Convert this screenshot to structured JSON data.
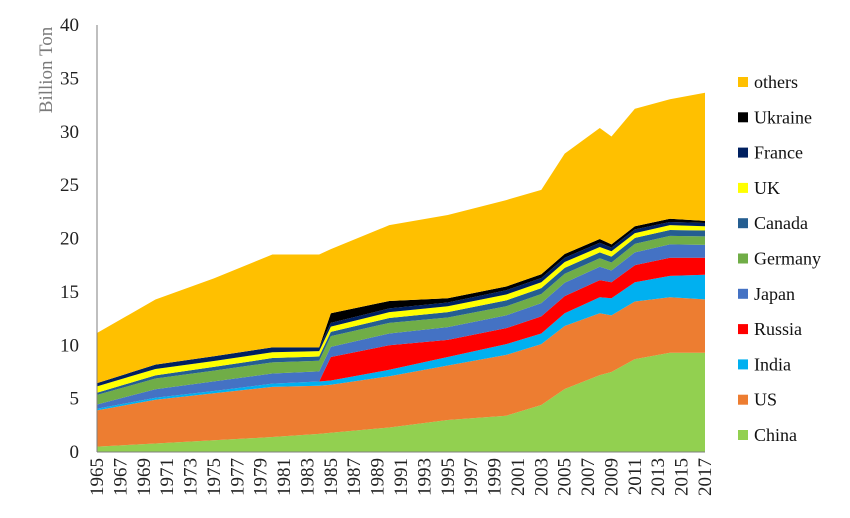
{
  "chart_data": {
    "type": "area",
    "stacked": true,
    "title": "",
    "xlabel": "",
    "ylabel": "Billion Ton",
    "ylim": [
      0,
      40
    ],
    "yticks": [
      0,
      5,
      10,
      15,
      20,
      25,
      30,
      35,
      40
    ],
    "yticks_labels": [
      "0",
      "5",
      "10",
      "15",
      "20",
      "25",
      "30",
      "35",
      "40"
    ],
    "xlim": [
      1965,
      2017
    ],
    "xtick_labels": [
      "1965",
      "1967",
      "1969",
      "1971",
      "1973",
      "1975",
      "1977",
      "1979",
      "1981",
      "1983",
      "1985",
      "1987",
      "1989",
      "1991",
      "1993",
      "1995",
      "1997",
      "1999",
      "2001",
      "2003",
      "2005",
      "2007",
      "2009",
      "2011",
      "2013",
      "2015",
      "2017"
    ],
    "legend_position": "right",
    "grid": false,
    "x_knots": [
      1965,
      1970,
      1975,
      1980,
      1984,
      1985,
      1990,
      1995,
      2000,
      2003,
      2005,
      2008,
      2009,
      2011,
      2014,
      2017
    ],
    "series": [
      {
        "name": "China",
        "color": "#92d050",
        "values": [
          0.5,
          0.8,
          1.1,
          1.4,
          1.7,
          1.8,
          2.3,
          3.0,
          3.4,
          4.4,
          5.9,
          7.2,
          7.5,
          8.7,
          9.3,
          9.3
        ]
      },
      {
        "name": "US",
        "color": "#ed7d31",
        "values": [
          3.4,
          4.1,
          4.4,
          4.7,
          4.5,
          4.5,
          4.8,
          5.1,
          5.7,
          5.7,
          5.9,
          5.8,
          5.3,
          5.4,
          5.2,
          5.0
        ]
      },
      {
        "name": "India",
        "color": "#00b0f0",
        "values": [
          0.15,
          0.18,
          0.22,
          0.3,
          0.4,
          0.4,
          0.6,
          0.8,
          1.0,
          1.0,
          1.2,
          1.5,
          1.6,
          1.8,
          2.0,
          2.3
        ]
      },
      {
        "name": "Russia",
        "color": "#ff0000",
        "values": [
          0,
          0,
          0,
          0,
          0,
          2.2,
          2.3,
          1.6,
          1.5,
          1.6,
          1.6,
          1.6,
          1.5,
          1.6,
          1.7,
          1.6
        ]
      },
      {
        "name": "Japan",
        "color": "#4472c4",
        "values": [
          0.4,
          0.8,
          0.9,
          0.95,
          0.95,
          0.95,
          1.1,
          1.2,
          1.2,
          1.25,
          1.25,
          1.25,
          1.1,
          1.2,
          1.25,
          1.2
        ]
      },
      {
        "name": "Germany",
        "color": "#70ad47",
        "values": [
          0.9,
          1.0,
          1.0,
          1.05,
          1.0,
          1.0,
          1.0,
          0.9,
          0.85,
          0.85,
          0.85,
          0.8,
          0.75,
          0.8,
          0.8,
          0.8
        ]
      },
      {
        "name": "Canada",
        "color": "#255e91",
        "values": [
          0.2,
          0.3,
          0.35,
          0.4,
          0.4,
          0.4,
          0.45,
          0.5,
          0.55,
          0.55,
          0.55,
          0.55,
          0.55,
          0.55,
          0.55,
          0.55
        ]
      },
      {
        "name": "UK",
        "color": "#ffff00",
        "values": [
          0.6,
          0.6,
          0.55,
          0.55,
          0.5,
          0.5,
          0.55,
          0.55,
          0.55,
          0.55,
          0.55,
          0.5,
          0.5,
          0.45,
          0.45,
          0.4
        ]
      },
      {
        "name": "France",
        "color": "#002060",
        "values": [
          0.3,
          0.4,
          0.45,
          0.45,
          0.35,
          0.35,
          0.35,
          0.35,
          0.4,
          0.4,
          0.4,
          0.4,
          0.35,
          0.35,
          0.3,
          0.3
        ]
      },
      {
        "name": "Ukraine",
        "color": "#000000",
        "values": [
          0,
          0,
          0,
          0,
          0,
          0.9,
          0.7,
          0.4,
          0.35,
          0.35,
          0.35,
          0.35,
          0.3,
          0.3,
          0.3,
          0.2
        ]
      },
      {
        "name": "others",
        "color": "#ffc000",
        "values": [
          4.7,
          6.1,
          7.3,
          8.7,
          8.7,
          6.0,
          7.1,
          7.8,
          8.1,
          7.9,
          9.4,
          10.4,
          10.1,
          11.0,
          11.2,
          12.0
        ]
      }
    ]
  }
}
